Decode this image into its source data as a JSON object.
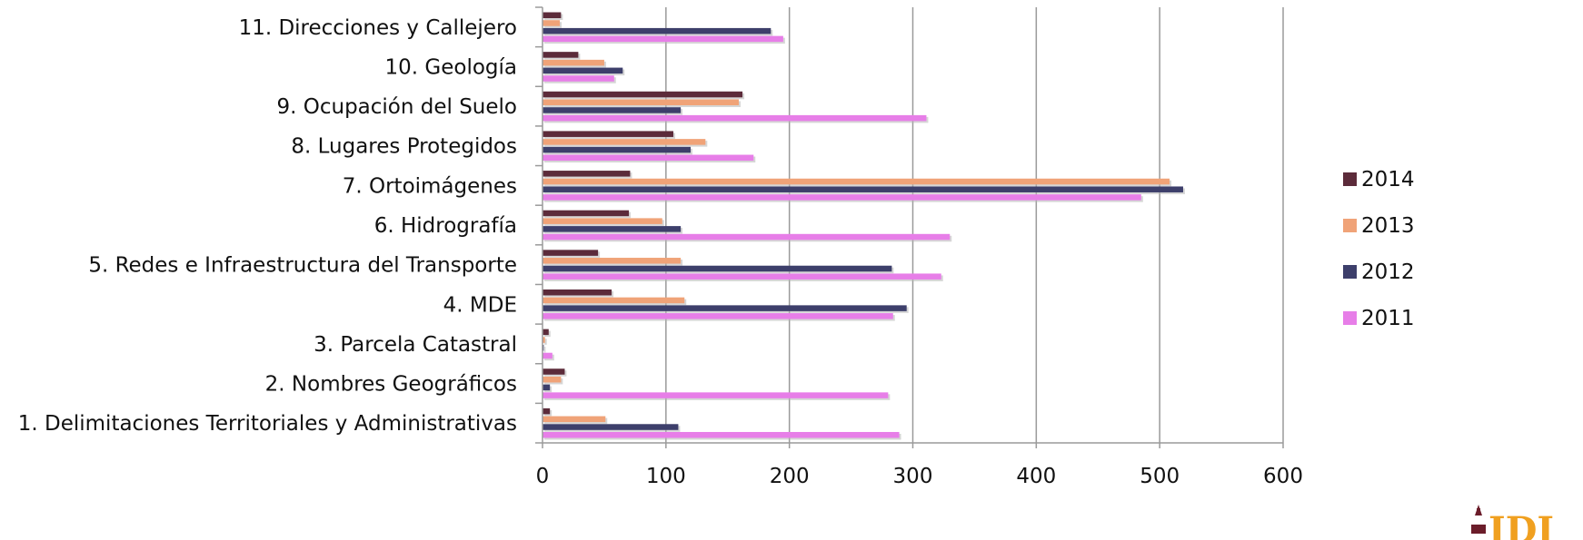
{
  "chart_data": {
    "type": "bar",
    "orientation": "horizontal",
    "categories": [
      "11. Direcciones y Callejero",
      "10. Geología",
      "9. Ocupación del Suelo",
      "8. Lugares Protegidos",
      "7. Ortoimágenes",
      "6. Hidrografía",
      "5. Redes e Infraestructura del Transporte",
      "4. MDE",
      "3. Parcela Catastral",
      "2. Nombres Geográficos",
      "1. Delimitaciones Territoriales y Administrativas"
    ],
    "series": [
      {
        "name": "2014",
        "color": "#5c2b3a",
        "values": [
          15,
          29,
          162,
          106,
          71,
          70,
          45,
          56,
          5,
          18,
          6
        ]
      },
      {
        "name": "2013",
        "color": "#f0a378",
        "values": [
          14,
          50,
          159,
          132,
          508,
          97,
          112,
          115,
          2,
          15,
          51
        ]
      },
      {
        "name": "2012",
        "color": "#3d3f6b",
        "values": [
          185,
          65,
          112,
          120,
          519,
          112,
          283,
          295,
          1,
          6,
          110
        ]
      },
      {
        "name": "2011",
        "color": "#e77ee8",
        "values": [
          195,
          58,
          311,
          171,
          485,
          330,
          323,
          284,
          8,
          280,
          289
        ]
      }
    ],
    "xticks": [
      "0",
      "100",
      "200",
      "300",
      "400",
      "500",
      "600"
    ],
    "xlim": [
      0,
      600
    ],
    "grid": true,
    "legend_position": "right",
    "title": "",
    "xlabel": "",
    "ylabel": ""
  }
}
